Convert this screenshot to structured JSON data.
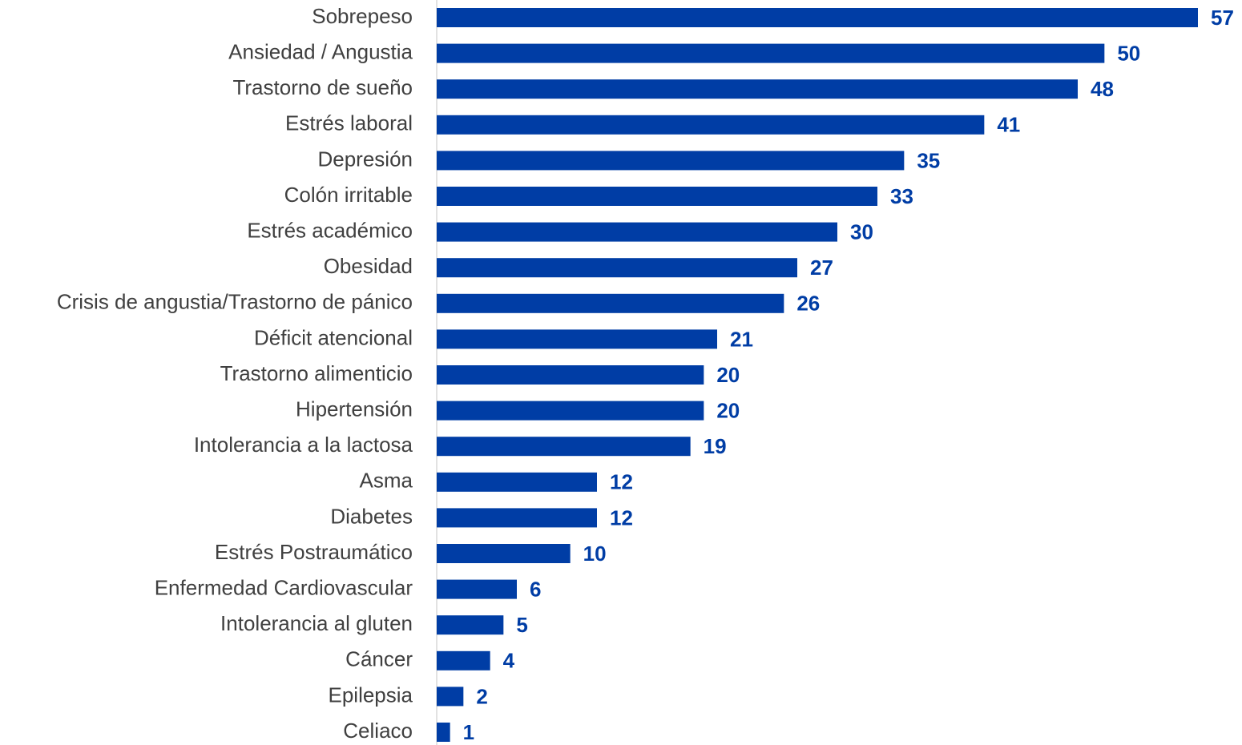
{
  "chart_data": {
    "type": "barh",
    "color": "#003da5",
    "categories": [
      "Sobrepeso",
      "Ansiedad / Angustia",
      "Trastorno de sueño",
      "Estrés laboral",
      "Depresión",
      "Colón irritable",
      "Estrés académico",
      "Obesidad",
      "Crisis de angustia/Trastorno de pánico",
      "Déficit atencional",
      "Trastorno alimenticio",
      "Hipertensión",
      "Intolerancia a la lactosa",
      "Asma",
      "Diabetes",
      "Estrés Postraumático",
      "Enfermedad Cardiovascular",
      "Intolerancia al gluten",
      "Cáncer",
      "Epilepsia",
      "Celiaco"
    ],
    "values": [
      57,
      50,
      48,
      41,
      35,
      33,
      30,
      27,
      26,
      21,
      20,
      20,
      19,
      12,
      12,
      10,
      6,
      5,
      4,
      2,
      1
    ]
  }
}
